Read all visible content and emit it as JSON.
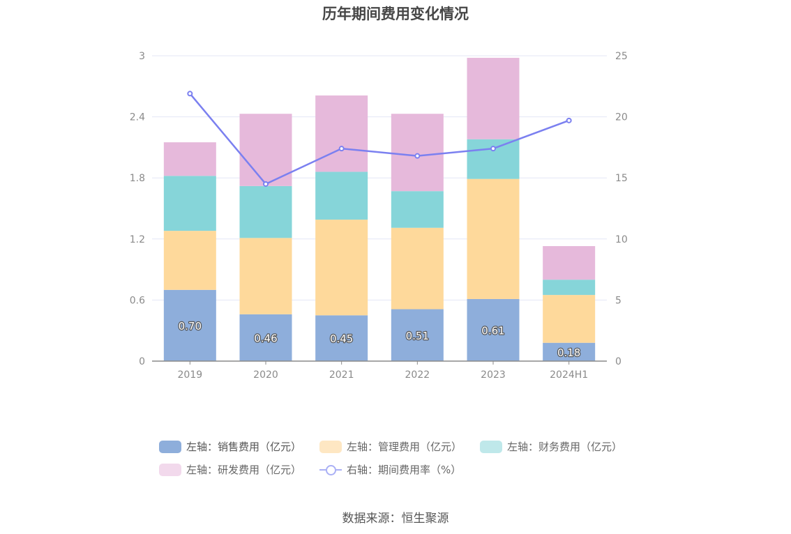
{
  "title": "历年期间费用变化情况",
  "source_label": "数据来源：恒生聚源",
  "colors": {
    "sales": "#8eaedb",
    "admin": "#fed99b",
    "finance": "#86d5d9",
    "rd": "#e6b9db",
    "rate_line": "#7b80f0",
    "axis": "#888888",
    "grid": "#e3e6f5"
  },
  "chart_data": {
    "type": "bar",
    "stacked": true,
    "categories": [
      "2019",
      "2020",
      "2021",
      "2022",
      "2023",
      "2024H1"
    ],
    "series": [
      {
        "name": "左轴：销售费用（亿元）",
        "key": "sales",
        "axis": "left",
        "values": [
          0.7,
          0.46,
          0.45,
          0.51,
          0.61,
          0.18
        ],
        "labels": [
          "0.70",
          "0.46",
          "0.45",
          "0.51",
          "0.61",
          "0.18"
        ]
      },
      {
        "name": "左轴：管理费用（亿元）",
        "key": "admin",
        "axis": "left",
        "values": [
          0.58,
          0.75,
          0.94,
          0.8,
          1.18,
          0.47
        ]
      },
      {
        "name": "左轴：财务费用（亿元）",
        "key": "finance",
        "axis": "left",
        "values": [
          0.54,
          0.51,
          0.47,
          0.36,
          0.39,
          0.15
        ]
      },
      {
        "name": "左轴：研发费用（亿元）",
        "key": "rd",
        "axis": "left",
        "values": [
          0.33,
          0.71,
          0.75,
          0.76,
          0.8,
          0.33
        ]
      },
      {
        "name": "右轴：期间费用率（%）",
        "key": "rate",
        "axis": "right",
        "type": "line",
        "values": [
          21.9,
          14.5,
          17.4,
          16.8,
          17.4,
          19.7
        ]
      }
    ],
    "y_left": {
      "ticks": [
        "0",
        "0.6",
        "1.2",
        "1.8",
        "2.4",
        "3"
      ],
      "ylim": [
        0,
        3
      ]
    },
    "y_right": {
      "ticks": [
        "0",
        "5",
        "10",
        "15",
        "20",
        "25"
      ],
      "ylim": [
        0,
        25
      ]
    },
    "grid": true,
    "legend_position": "bottom"
  }
}
